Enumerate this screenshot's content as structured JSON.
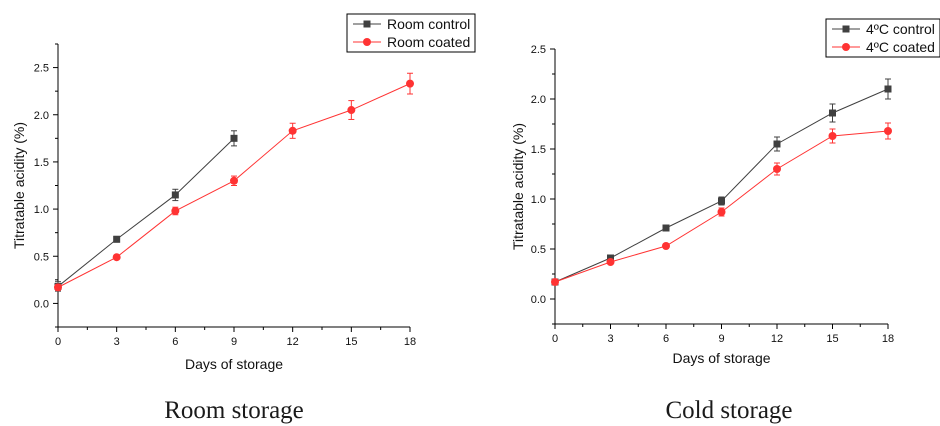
{
  "colors": {
    "control": "#404040",
    "coated": "#ff3333",
    "axis": "#000000"
  },
  "chart_data": [
    {
      "type": "line",
      "caption": "Room storage",
      "xlabel": "Days of storage",
      "ylabel": "Titratable acidity (%)",
      "xlim": [
        0,
        18
      ],
      "ylim": [
        -0.25,
        2.75
      ],
      "xticks": [
        "0",
        "3",
        "6",
        "9",
        "12",
        "15",
        "18"
      ],
      "yticks": [
        "0.0",
        "0.5",
        "1.0",
        "1.5",
        "2.0",
        "2.5"
      ],
      "legend_position": "top-right",
      "series": [
        {
          "name": "Room control",
          "marker": "square",
          "x": [
            0,
            3,
            6,
            9
          ],
          "y": [
            0.18,
            0.68,
            1.15,
            1.75
          ],
          "err": [
            0.05,
            0.03,
            0.06,
            0.08
          ]
        },
        {
          "name": "Room coated",
          "marker": "circle",
          "x": [
            0,
            3,
            6,
            9,
            12,
            15,
            18
          ],
          "y": [
            0.17,
            0.49,
            0.98,
            1.3,
            1.83,
            2.05,
            2.33
          ],
          "err": [
            0.03,
            0.02,
            0.04,
            0.05,
            0.08,
            0.1,
            0.11
          ]
        }
      ]
    },
    {
      "type": "line",
      "caption": "Cold storage",
      "xlabel": "Days of storage",
      "ylabel": "Titratable acidity (%)",
      "xlim": [
        0,
        18
      ],
      "ylim": [
        -0.25,
        2.5
      ],
      "xticks": [
        "0",
        "3",
        "6",
        "9",
        "12",
        "15",
        "18"
      ],
      "yticks": [
        "0.0",
        "0.5",
        "1.0",
        "1.5",
        "2.0",
        "2.5"
      ],
      "legend_position": "top-right",
      "series": [
        {
          "name": "4ºC control",
          "marker": "square",
          "x": [
            0,
            3,
            6,
            9,
            12,
            15,
            18
          ],
          "y": [
            0.17,
            0.41,
            0.71,
            0.98,
            1.55,
            1.86,
            2.1
          ],
          "err": [
            0.02,
            0.02,
            0.03,
            0.04,
            0.07,
            0.09,
            0.1
          ]
        },
        {
          "name": "4ºC coated",
          "marker": "circle",
          "x": [
            0,
            3,
            6,
            9,
            12,
            15,
            18
          ],
          "y": [
            0.17,
            0.37,
            0.53,
            0.87,
            1.3,
            1.63,
            1.68
          ],
          "err": [
            0.02,
            0.02,
            0.02,
            0.04,
            0.06,
            0.07,
            0.08
          ]
        }
      ]
    }
  ]
}
